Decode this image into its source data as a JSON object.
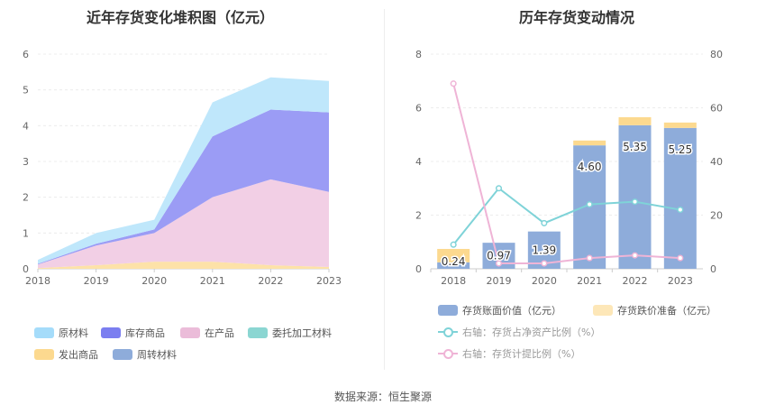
{
  "chart_data": [
    {
      "type": "area",
      "stacked": true,
      "title": "近年存货变化堆积图（亿元）",
      "x": [
        "2018",
        "2019",
        "2020",
        "2021",
        "2022",
        "2023"
      ],
      "ylim": [
        0,
        6
      ],
      "yticks": [
        "0",
        "1",
        "2",
        "3",
        "4",
        "5",
        "6"
      ],
      "series": [
        {
          "name": "发出商品",
          "color": "#fde2a8",
          "values": [
            0.02,
            0.1,
            0.2,
            0.2,
            0.1,
            0.05
          ]
        },
        {
          "name": "委托加工材料",
          "color": "#bfe8df",
          "values": [
            0.0,
            0.0,
            0.0,
            0.0,
            0.0,
            0.0
          ]
        },
        {
          "name": "在产品",
          "color": "#f2cfe5",
          "values": [
            0.1,
            0.55,
            0.8,
            1.8,
            2.4,
            2.1
          ]
        },
        {
          "name": "库存商品",
          "color": "#9b9cf5",
          "values": [
            0.02,
            0.05,
            0.1,
            1.7,
            1.95,
            2.22
          ]
        },
        {
          "name": "原材料",
          "color": "#bfe7fb",
          "values": [
            0.11,
            0.3,
            0.27,
            0.95,
            0.9,
            0.88
          ]
        },
        {
          "name": "周转材料",
          "color": "#8eb0db",
          "values": [
            0.0,
            0.0,
            0.0,
            0.0,
            0.0,
            0.0
          ]
        }
      ],
      "legend": [
        {
          "name": "原材料",
          "color": "#a5dcfa"
        },
        {
          "name": "库存商品",
          "color": "#7b7ef0"
        },
        {
          "name": "在产品",
          "color": "#ebbcd9"
        },
        {
          "name": "委托加工材料",
          "color": "#8bd6d2"
        },
        {
          "name": "发出商品",
          "color": "#fcd98f"
        },
        {
          "name": "周转材料",
          "color": "#8eacda"
        }
      ]
    },
    {
      "type": "bar",
      "title": "历年存货变动情况",
      "x": [
        "2018",
        "2019",
        "2020",
        "2021",
        "2022",
        "2023"
      ],
      "ylim": [
        0,
        8
      ],
      "yticks": [
        "0",
        "2",
        "4",
        "6",
        "8"
      ],
      "y2lim": [
        0,
        80
      ],
      "y2ticks": [
        "0",
        "20",
        "40",
        "60",
        "80"
      ],
      "bars": [
        {
          "name": "存货账面价值（亿元）",
          "color": "#8eacda",
          "values": [
            0.24,
            0.97,
            1.39,
            4.6,
            5.35,
            5.25
          ],
          "labels": [
            "0.24",
            "0.97",
            "1.39",
            "4.60",
            "5.35",
            "5.25"
          ]
        },
        {
          "name": "存货跌价准备（亿元）",
          "color": "#fcd98f",
          "values": [
            0.5,
            0.0,
            0.0,
            0.18,
            0.3,
            0.2
          ]
        }
      ],
      "lines": [
        {
          "name": "右轴：存货占净资产比例（%）",
          "color": "#7fd3d8",
          "values": [
            9,
            30,
            17,
            24,
            25,
            22
          ]
        },
        {
          "name": "右轴：存货计提比例（%）",
          "color": "#efb4d6",
          "values": [
            69,
            2,
            2,
            4,
            5,
            4
          ]
        }
      ]
    }
  ],
  "source": "数据来源：恒生聚源"
}
